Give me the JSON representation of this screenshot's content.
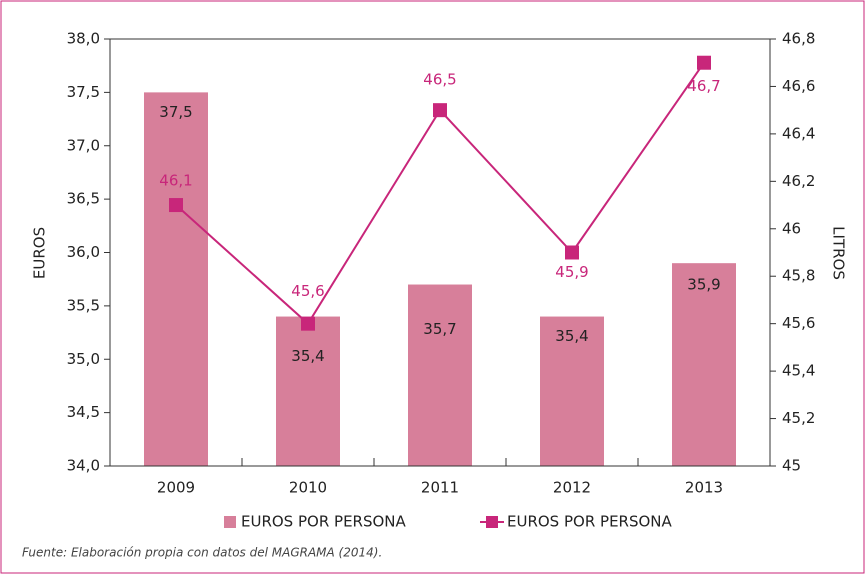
{
  "chart_data": {
    "type": "bar_line",
    "categories": [
      "2009",
      "2010",
      "2011",
      "2012",
      "2013"
    ],
    "ylabel": "EUROS",
    "y2label": "LITROS",
    "ylim": [
      34,
      38
    ],
    "yticks": [
      {
        "value": 34,
        "label": "34,0"
      },
      {
        "value": 34.5,
        "label": "34,5"
      },
      {
        "value": 35,
        "label": "35,0"
      },
      {
        "value": 35.5,
        "label": "35,5"
      },
      {
        "value": 36,
        "label": "36,0"
      },
      {
        "value": 36.5,
        "label": "36,5"
      },
      {
        "value": 37,
        "label": "37,0"
      },
      {
        "value": 37.5,
        "label": "37,5"
      },
      {
        "value": 38,
        "label": "38,0"
      }
    ],
    "y2lim": [
      45,
      46.8
    ],
    "y2ticks": [
      45,
      {
        "value": 45.2,
        "label": "45,2"
      },
      {
        "value": 45.4,
        "label": "45,4"
      },
      {
        "value": 45.6,
        "label": "45,6"
      },
      {
        "value": 45.8,
        "label": "45,8"
      },
      46,
      {
        "value": 46.2,
        "label": "46,2"
      },
      {
        "value": 46.4,
        "label": "46,4"
      },
      {
        "value": 46.6,
        "label": "46,6"
      },
      {
        "value": 46.8,
        "label": "46,8"
      }
    ],
    "grid": false,
    "legend": "bottom",
    "series": [
      {
        "name": "EUROS POR PERSONA",
        "type": "bar",
        "color": "#d77f9a",
        "values": [
          37.5,
          35.4,
          35.7,
          35.4,
          35.9
        ],
        "value_labels": [
          "37,5",
          "35,4",
          "35,7",
          "35,4",
          "35,9"
        ]
      },
      {
        "name": "EUROS POR PERSONA",
        "type": "line",
        "axis": "y2",
        "color": "#c8267a",
        "values": [
          46.1,
          45.6,
          46.5,
          45.9,
          46.7
        ],
        "value_labels": [
          "46,1",
          "45,6",
          "46,5",
          "45,9",
          "46,7"
        ]
      }
    ],
    "source": "Fuente: Elaboración propia con datos del MAGRAMA (2014)."
  }
}
